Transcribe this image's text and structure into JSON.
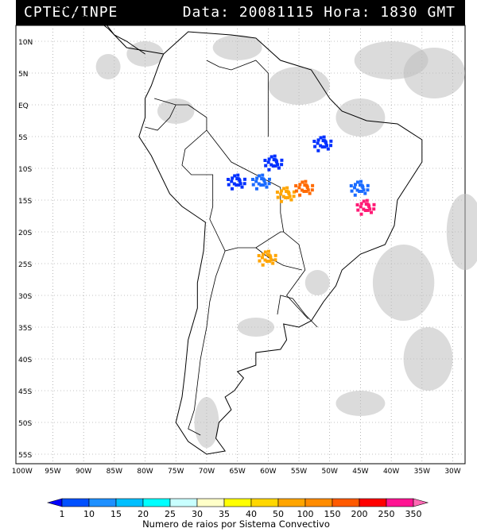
{
  "header": {
    "agency": "CPTEC/INPE",
    "info": "Data: 20081115 Hora: 1830 GMT"
  },
  "map": {
    "lat_labels": [
      "10N",
      "5N",
      "EQ",
      "5S",
      "10S",
      "15S",
      "20S",
      "25S",
      "30S",
      "35S",
      "40S",
      "45S",
      "50S",
      "55S"
    ],
    "lat_values": [
      10,
      5,
      0,
      -5,
      -10,
      -15,
      -20,
      -25,
      -30,
      -35,
      -40,
      -45,
      -50,
      -55
    ],
    "lon_labels": [
      "100W",
      "95W",
      "90W",
      "85W",
      "80W",
      "75W",
      "70W",
      "65W",
      "60W",
      "55W",
      "50W",
      "45W",
      "40W",
      "35W",
      "30W"
    ],
    "lon_values": [
      -100,
      -95,
      -90,
      -85,
      -80,
      -75,
      -70,
      -65,
      -60,
      -55,
      -50,
      -45,
      -40,
      -35,
      -30
    ],
    "colors": {
      "land_outline": "#000000",
      "cloud_gray": "#bdbdbd",
      "grid": "#888888"
    },
    "convective_systems": [
      {
        "label": "1",
        "color": "#0030ff",
        "lon": -59,
        "lat": -9
      },
      {
        "label": "1",
        "color": "#0030ff",
        "lon": -51,
        "lat": -6
      },
      {
        "label": "1",
        "color": "#0030ff",
        "lon": -65,
        "lat": -12
      },
      {
        "label": "1",
        "color": "#1a6bff",
        "lon": -61,
        "lat": -12
      },
      {
        "label": "50",
        "color": "#ffa500",
        "lon": -57,
        "lat": -14
      },
      {
        "label": "150",
        "color": "#ff6a00",
        "lon": -54,
        "lat": -13
      },
      {
        "label": "350",
        "color": "#ff1a75",
        "lon": -44,
        "lat": -16
      },
      {
        "label": "50",
        "color": "#ffa500",
        "lon": -60,
        "lat": -24
      },
      {
        "label": "1",
        "color": "#1a6bff",
        "lon": -45,
        "lat": -13
      }
    ]
  },
  "colorbar": {
    "labels": [
      "1",
      "10",
      "15",
      "20",
      "25",
      "30",
      "35",
      "40",
      "50",
      "100",
      "150",
      "200",
      "250",
      "350"
    ],
    "colors": [
      "#0000ff",
      "#0050ff",
      "#1e90ff",
      "#00bfff",
      "#00ffff",
      "#c8ffff",
      "#ffffc8",
      "#ffff00",
      "#ffd700",
      "#ffa500",
      "#ff8c00",
      "#ff5a00",
      "#ff0000",
      "#ff1493",
      "#ff69b4"
    ],
    "title": "Numero de raios por Sistema Convectivo"
  }
}
